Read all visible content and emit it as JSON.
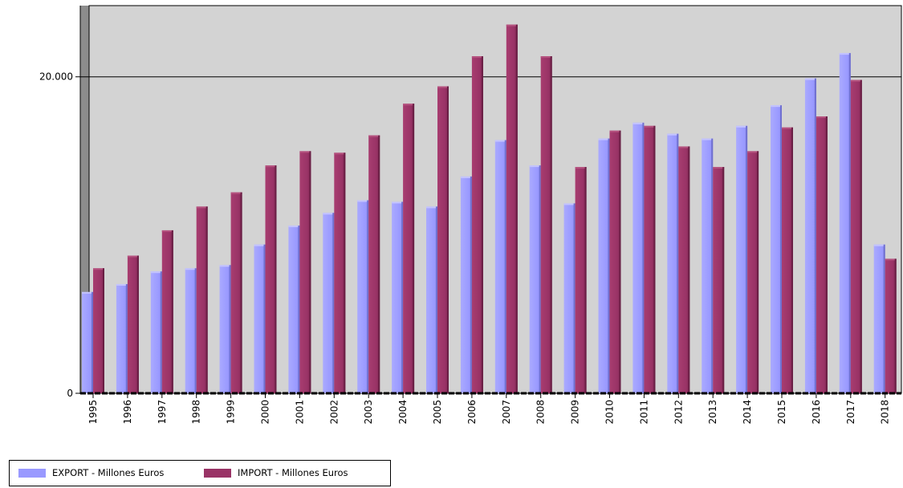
{
  "chart_data": {
    "type": "bar",
    "categories": [
      "1995",
      "1996",
      "1997",
      "1998",
      "1999",
      "2000",
      "2001",
      "2002",
      "2003",
      "2004",
      "2005",
      "2006",
      "2007",
      "2008",
      "2009",
      "2010",
      "2011",
      "2012",
      "2013",
      "2014",
      "2015",
      "2016",
      "2017",
      "2018"
    ],
    "series": [
      {
        "name": "EXPORT - Millones Euros",
        "color": "#9999ff",
        "values": [
          6400,
          6900,
          7700,
          7900,
          8100,
          9400,
          10600,
          11400,
          12200,
          12100,
          11800,
          13700,
          16000,
          14400,
          12000,
          16100,
          17100,
          16400,
          16100,
          16900,
          18200,
          19900,
          21500,
          9400
        ]
      },
      {
        "name": "IMPORT - Millones Euros",
        "color": "#993366",
        "values": [
          7900,
          8700,
          10300,
          11800,
          12700,
          14400,
          15300,
          15200,
          16300,
          18300,
          19400,
          21300,
          23300,
          21300,
          14300,
          16600,
          16900,
          15600,
          14300,
          15300,
          16800,
          17500,
          19800,
          8500
        ]
      }
    ],
    "yticks": [
      {
        "value": 0,
        "label": "0"
      },
      {
        "value": 20000,
        "label": "20.000"
      }
    ],
    "ylim": [
      0,
      24500
    ],
    "xlabel": "",
    "ylabel": "",
    "grid": "horizontal at 20.000",
    "legend_position": "bottom-left",
    "plot_background": "#d3d3d3"
  }
}
